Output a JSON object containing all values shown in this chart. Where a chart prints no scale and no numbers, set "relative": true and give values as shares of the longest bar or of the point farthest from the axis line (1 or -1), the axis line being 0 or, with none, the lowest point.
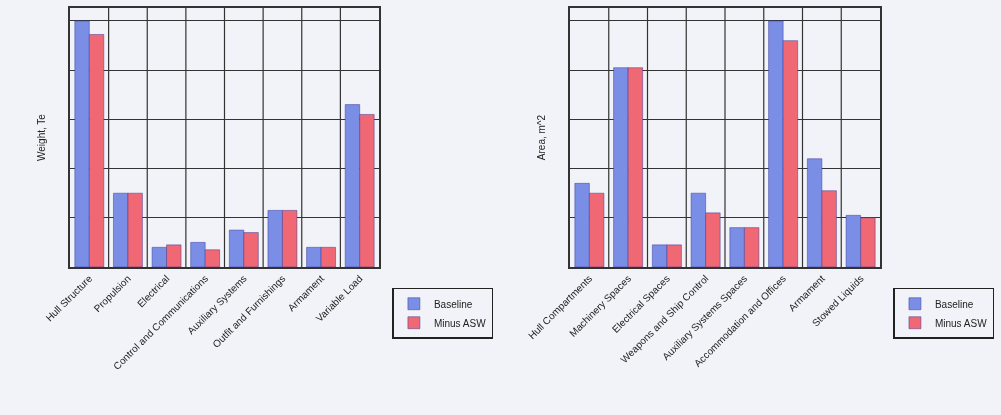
{
  "chart_data": [
    {
      "type": "bar",
      "ylabel": "Weight, Te",
      "relative": true,
      "grid": true,
      "legend": "bottom right",
      "categories": [
        "Hull Structure",
        "Propulsion",
        "Electrical",
        "Control and Communications",
        "Auxiliary Systems",
        "Outfit and Furnishings",
        "Armament",
        "Variable Load"
      ],
      "series": [
        {
          "name": "Baseline",
          "color": "#7b8ee6",
          "values": [
            1,
            0.3,
            0.08,
            0.1,
            0.15,
            0.23,
            0.08,
            0.66
          ]
        },
        {
          "name": "Minus ASW",
          "color": "#f06874",
          "values": [
            0.945,
            0.3,
            0.09,
            0.07,
            0.14,
            0.23,
            0.08,
            0.62
          ]
        }
      ]
    },
    {
      "type": "bar",
      "ylabel": "Area, m^2",
      "relative": true,
      "grid": true,
      "legend": "bottom right",
      "categories": [
        "Hull Compartments",
        "Machinery Spaces",
        "Electrical Spaces",
        "Weapons and Ship Control",
        "Auxiliary Systems Spaces",
        "Accommodation and Offices",
        "Armament",
        "Stowed Liquids"
      ],
      "series": [
        {
          "name": "Baseline",
          "color": "#7b8ee6",
          "values": [
            0.34,
            0.81,
            0.09,
            0.3,
            0.16,
            1,
            0.44,
            0.21
          ]
        },
        {
          "name": "Minus ASW",
          "color": "#f06874",
          "values": [
            0.3,
            0.81,
            0.09,
            0.22,
            0.16,
            0.92,
            0.31,
            0.2
          ]
        }
      ]
    }
  ]
}
